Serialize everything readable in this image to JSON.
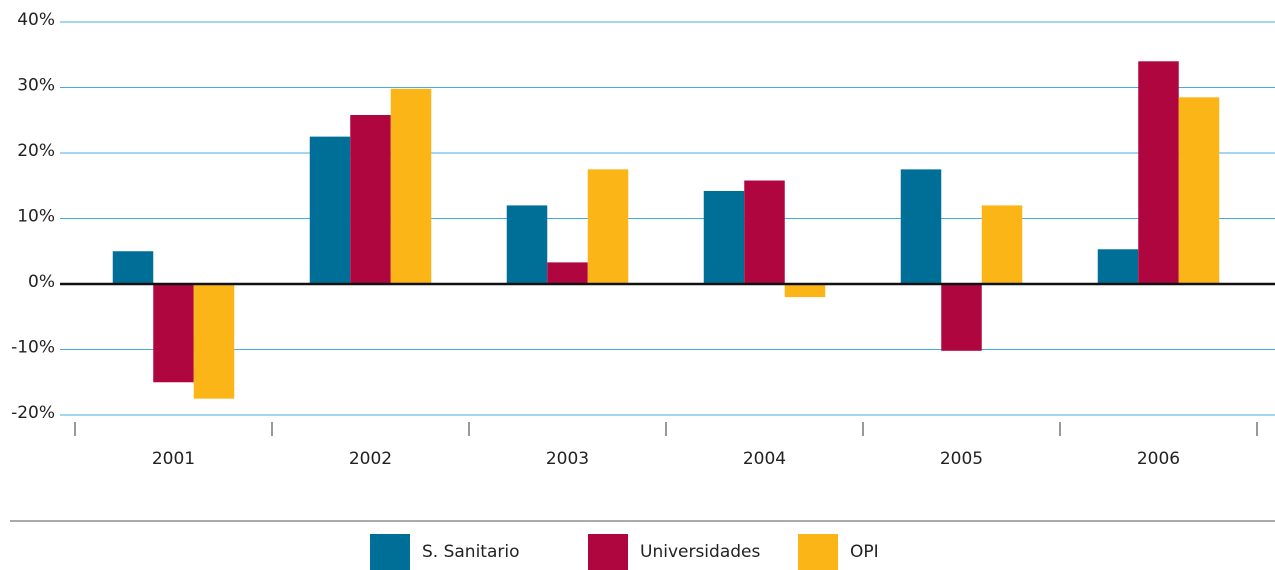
{
  "chart_data": {
    "type": "bar",
    "categories": [
      "2001",
      "2002",
      "2003",
      "2004",
      "2005",
      "2006"
    ],
    "series": [
      {
        "name": "S. Sanitario",
        "color": "#006f97",
        "values": [
          5,
          22.5,
          12,
          14.2,
          17.5,
          5.3
        ]
      },
      {
        "name": "Universidades",
        "color": "#b0063f",
        "values": [
          -15,
          25.8,
          3.3,
          15.8,
          -10.2,
          34
        ]
      },
      {
        "name": "OPI",
        "color": "#fbb516",
        "values": [
          -17.5,
          29.8,
          17.5,
          -2,
          12,
          28.5
        ]
      }
    ],
    "ylim": [
      -20,
      40
    ],
    "yticks": [
      {
        "value": -20,
        "label": "-20%"
      },
      {
        "value": -10,
        "label": "-10%"
      },
      {
        "value": 0,
        "label": "0%"
      },
      {
        "value": 10,
        "label": "10%"
      },
      {
        "value": 20,
        "label": "20%"
      },
      {
        "value": 30,
        "label": "30%"
      },
      {
        "value": 40,
        "label": "40%"
      }
    ],
    "grid": true,
    "legend": "bottom"
  }
}
